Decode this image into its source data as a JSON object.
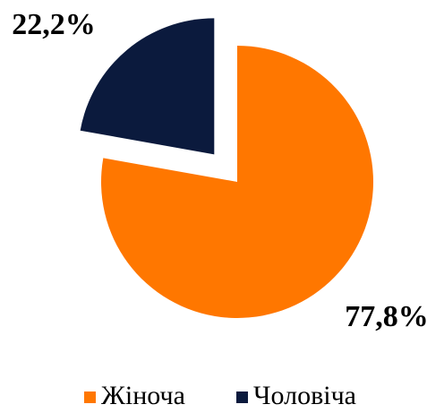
{
  "chart_data": {
    "type": "pie",
    "categories": [
      "Жіноча",
      "Чоловіча"
    ],
    "values": [
      77.8,
      22.2
    ],
    "value_labels": [
      "77,8%",
      "22,2%"
    ],
    "colors": [
      "#ff7700",
      "#0b1a3d"
    ],
    "legend": "bottom"
  }
}
